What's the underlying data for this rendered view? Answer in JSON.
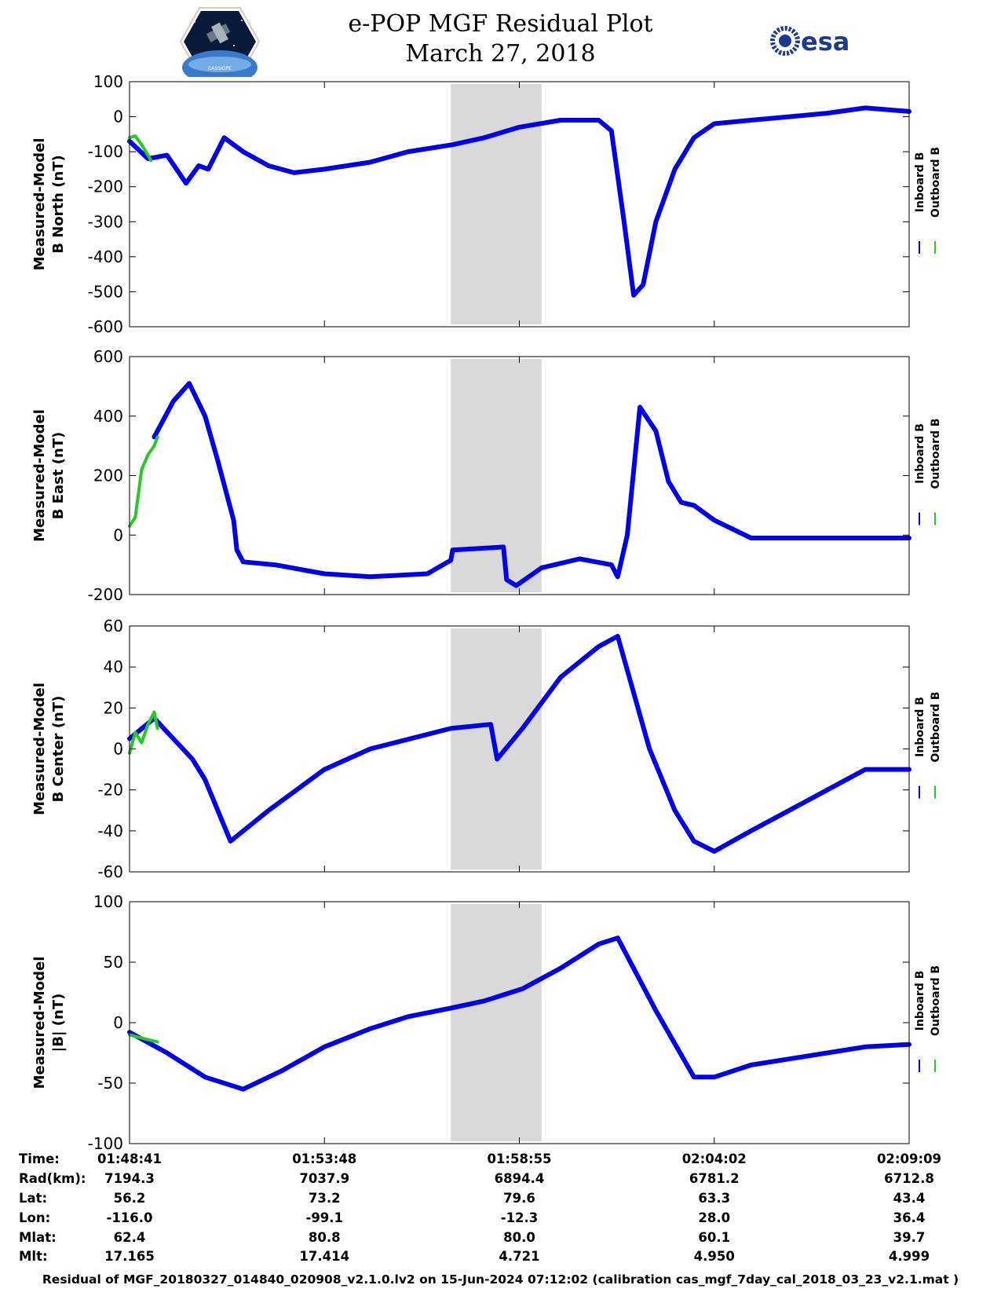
{
  "header": {
    "title": "e-POP MGF Residual Plot",
    "subtitle": "March 27, 2018",
    "logo_left_text": "CASSIOPE",
    "logo_right_text": "esa"
  },
  "chart_data": [
    {
      "type": "line",
      "ylabel": [
        "Measured-Model",
        "B North (nT)"
      ],
      "ylim": [
        -600,
        100
      ],
      "yticks": [
        100,
        0,
        -100,
        -200,
        -300,
        -400,
        -500,
        -600
      ],
      "legend": [
        "Inboard B",
        "Outboard B"
      ],
      "legend_placement": "right",
      "shaded_x_range": [
        "01:57:07",
        "01:59:30"
      ],
      "series": [
        {
          "name": "Inboard B",
          "color": "#0000ee",
          "x": [
            "01:48:41",
            "01:49:10",
            "01:49:40",
            "01:50:10",
            "01:50:30",
            "01:50:45",
            "01:51:10",
            "01:51:40",
            "01:52:20",
            "01:53:00",
            "01:53:48",
            "01:55:00",
            "01:56:00",
            "01:57:10",
            "01:58:00",
            "01:58:55",
            "02:00:00",
            "02:01:00",
            "02:01:20",
            "02:01:40",
            "02:01:55",
            "02:02:10",
            "02:02:30",
            "02:03:00",
            "02:03:30",
            "02:04:02",
            "02:05:00",
            "02:06:00",
            "02:07:00",
            "02:08:00",
            "02:09:09"
          ],
          "y": [
            -70,
            -120,
            -110,
            -190,
            -140,
            -150,
            -60,
            -100,
            -140,
            -160,
            -150,
            -130,
            -100,
            -80,
            -60,
            -30,
            -10,
            -10,
            -40,
            -300,
            -510,
            -480,
            -300,
            -150,
            -60,
            -20,
            -10,
            0,
            10,
            25,
            15
          ]
        },
        {
          "name": "Outboard B",
          "color": "#22cc22",
          "x": [
            "01:48:41",
            "01:48:50",
            "01:49:00",
            "01:49:10",
            "01:49:15"
          ],
          "y": [
            -60,
            -55,
            -80,
            -110,
            -125
          ]
        }
      ]
    },
    {
      "type": "line",
      "ylabel": [
        "Measured-Model",
        "B East (nT)"
      ],
      "ylim": [
        -200,
        600
      ],
      "yticks": [
        600,
        400,
        200,
        0,
        -200
      ],
      "legend": [
        "Inboard B",
        "Outboard B"
      ],
      "legend_placement": "right",
      "shaded_x_range": [
        "01:57:07",
        "01:59:30"
      ],
      "series": [
        {
          "name": "Inboard B",
          "color": "#0000ee",
          "x": [
            "01:49:20",
            "01:49:50",
            "01:50:15",
            "01:50:40",
            "01:51:00",
            "01:51:25",
            "01:51:30",
            "01:51:40",
            "01:52:30",
            "01:53:48",
            "01:55:00",
            "01:56:30",
            "01:57:07",
            "01:57:10",
            "01:58:30",
            "01:58:35",
            "01:58:50",
            "01:59:30",
            "02:00:30",
            "02:01:20",
            "02:01:30",
            "02:01:45",
            "02:02:05",
            "02:02:30",
            "02:02:50",
            "02:03:10",
            "02:03:30",
            "02:04:02",
            "02:05:00",
            "02:07:00",
            "02:09:09"
          ],
          "y": [
            330,
            450,
            510,
            400,
            250,
            50,
            -50,
            -90,
            -100,
            -130,
            -140,
            -130,
            -85,
            -50,
            -40,
            -150,
            -170,
            -110,
            -80,
            -100,
            -140,
            0,
            430,
            350,
            180,
            110,
            100,
            50,
            -10,
            -10,
            -10
          ]
        },
        {
          "name": "Outboard B",
          "color": "#22cc22",
          "x": [
            "01:48:41",
            "01:48:50",
            "01:49:00",
            "01:49:10",
            "01:49:20",
            "01:49:25"
          ],
          "y": [
            30,
            60,
            220,
            270,
            300,
            330
          ]
        }
      ]
    },
    {
      "type": "line",
      "ylabel": [
        "Measured-Model",
        "B Center (nT)"
      ],
      "ylim": [
        -60,
        60
      ],
      "yticks": [
        60,
        40,
        20,
        0,
        -20,
        -40,
        -60
      ],
      "legend": [
        "Inboard B",
        "Outboard B"
      ],
      "legend_placement": "right",
      "shaded_x_range": [
        "01:57:07",
        "01:59:30"
      ],
      "series": [
        {
          "name": "Inboard B",
          "color": "#0000ee",
          "x": [
            "01:48:41",
            "01:49:20",
            "01:49:50",
            "01:50:20",
            "01:50:40",
            "01:51:00",
            "01:51:20",
            "01:52:20",
            "01:53:48",
            "01:55:00",
            "01:57:07",
            "01:58:10",
            "01:58:20",
            "01:59:00",
            "02:00:00",
            "02:01:00",
            "02:01:30",
            "02:02:20",
            "02:03:00",
            "02:03:30",
            "02:04:02",
            "02:05:00",
            "02:06:00",
            "02:07:00",
            "02:08:00",
            "02:09:09"
          ],
          "y": [
            5,
            15,
            5,
            -5,
            -15,
            -30,
            -45,
            -30,
            -10,
            0,
            10,
            12,
            -5,
            10,
            35,
            50,
            55,
            0,
            -30,
            -45,
            -50,
            -40,
            -30,
            -20,
            -10,
            -10
          ]
        },
        {
          "name": "Outboard B",
          "color": "#22cc22",
          "x": [
            "01:48:41",
            "01:48:50",
            "01:49:00",
            "01:49:10",
            "01:49:20",
            "01:49:25"
          ],
          "y": [
            -2,
            8,
            3,
            12,
            18,
            10
          ]
        }
      ]
    },
    {
      "type": "line",
      "ylabel": [
        "Measured-Model",
        "|B| (nT)"
      ],
      "ylim": [
        -100,
        100
      ],
      "yticks": [
        100,
        50,
        0,
        -50,
        -100
      ],
      "legend": [
        "Inboard B",
        "Outboard B"
      ],
      "legend_placement": "right",
      "shaded_x_range": [
        "01:57:07",
        "01:59:30"
      ],
      "series": [
        {
          "name": "Inboard B",
          "color": "#0000ee",
          "x": [
            "01:48:41",
            "01:49:40",
            "01:50:40",
            "01:51:40",
            "01:52:40",
            "01:53:48",
            "01:55:00",
            "01:56:00",
            "01:57:07",
            "01:58:00",
            "01:59:00",
            "02:00:00",
            "02:01:00",
            "02:01:30",
            "02:02:30",
            "02:03:30",
            "02:04:02",
            "02:05:00",
            "02:06:00",
            "02:07:00",
            "02:08:00",
            "02:09:09"
          ],
          "y": [
            -8,
            -25,
            -45,
            -55,
            -40,
            -20,
            -5,
            5,
            12,
            18,
            28,
            45,
            65,
            70,
            10,
            -45,
            -45,
            -35,
            -30,
            -25,
            -20,
            -18
          ]
        },
        {
          "name": "Outboard B",
          "color": "#22cc22",
          "x": [
            "01:48:41",
            "01:48:55",
            "01:49:10",
            "01:49:25"
          ],
          "y": [
            -10,
            -12,
            -14,
            -16
          ]
        }
      ]
    }
  ],
  "xaxis": {
    "tick_labels": [
      "01:48:41",
      "01:53:48",
      "01:58:55",
      "02:04:02",
      "02:09:09"
    ],
    "range": [
      "01:48:41",
      "02:09:09"
    ]
  },
  "ephemeris": {
    "row_labels": [
      "Time:",
      "Rad(km):",
      "Lat:",
      "Lon:",
      "Mlat:",
      "Mlt:"
    ],
    "columns": [
      [
        "01:48:41",
        "7194.3",
        "56.2",
        "-116.0",
        "62.4",
        "17.165"
      ],
      [
        "01:53:48",
        "7037.9",
        "73.2",
        "-99.1",
        "80.8",
        "17.414"
      ],
      [
        "01:58:55",
        "6894.4",
        "79.6",
        "-12.3",
        "80.0",
        "4.721"
      ],
      [
        "02:04:02",
        "6781.2",
        "63.3",
        "28.0",
        "60.1",
        "4.950"
      ],
      [
        "02:09:09",
        "6712.8",
        "43.4",
        "36.4",
        "39.7",
        "4.999"
      ]
    ]
  },
  "footer": {
    "text": "Residual of MGF_20180327_014840_020908_v2.1.0.lv2 on 15-Jun-2024 07:12:02 (calibration cas_mgf_7day_cal_2018_03_23_v2.1.mat )"
  },
  "colors": {
    "inboard": "#0000ee",
    "outboard": "#22cc22",
    "shade": "#d9d9d9"
  }
}
